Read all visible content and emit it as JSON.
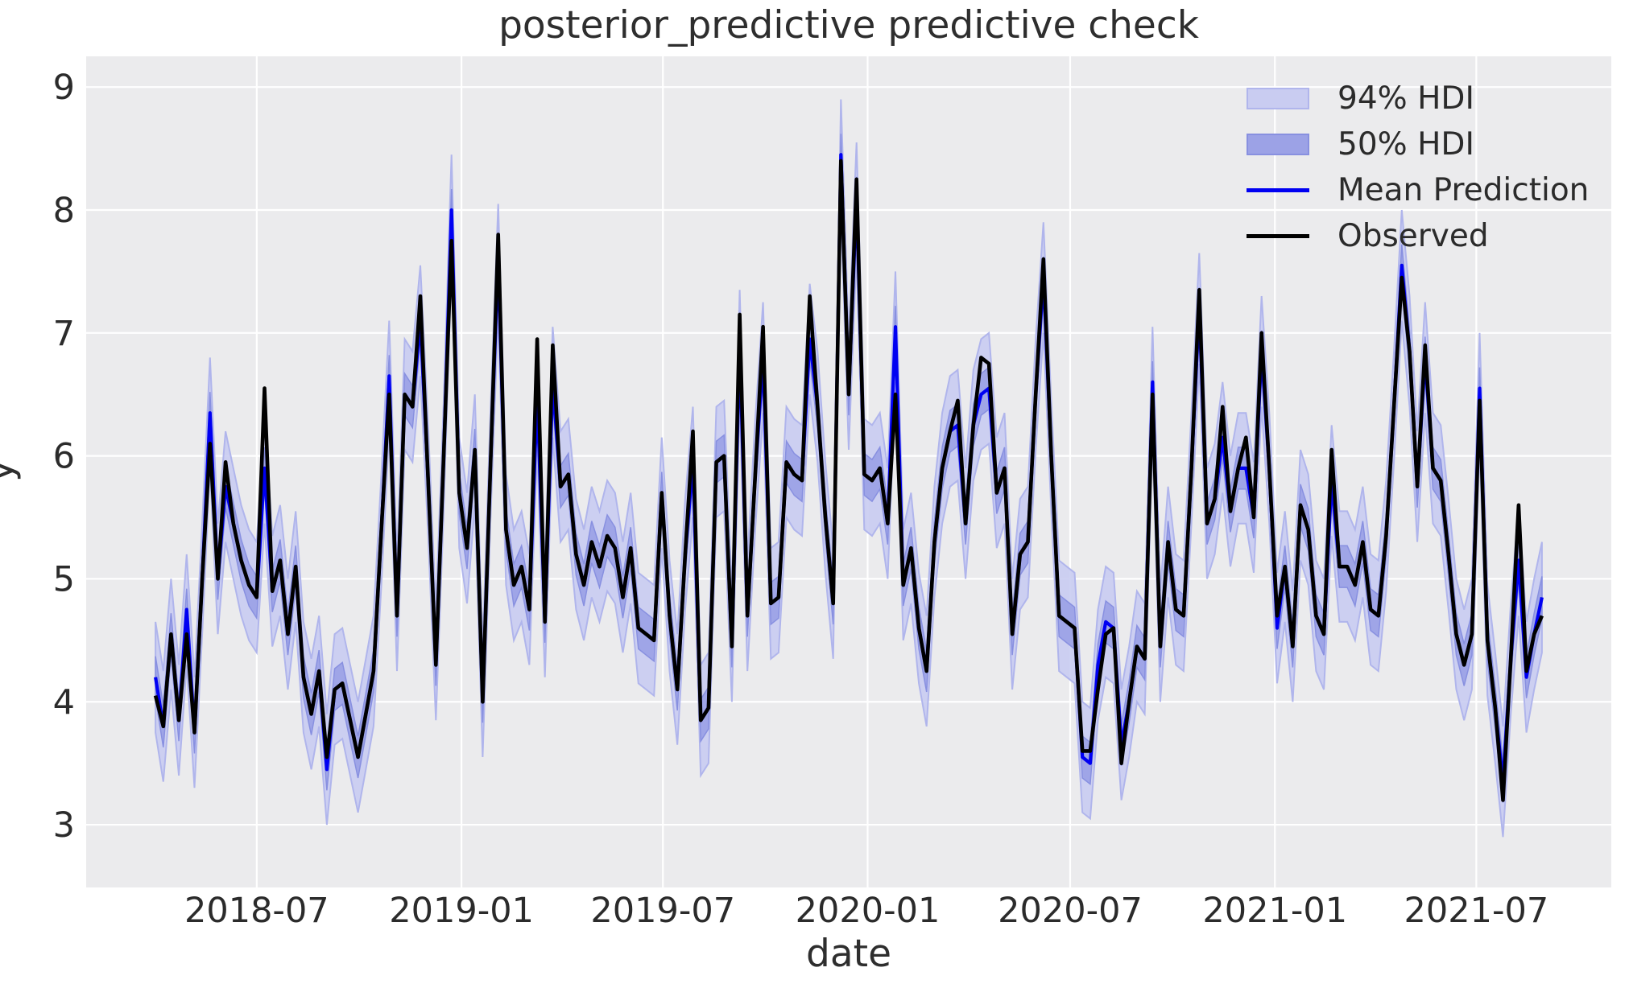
{
  "chart_data": {
    "type": "line",
    "title": "posterior_predictive predictive check",
    "xlabel": "date",
    "ylabel": "y",
    "grid": true,
    "colors": {
      "figure_bg": "#ffffff",
      "panel_bg": "#ebebed",
      "grid_color": "#ffffff",
      "tick_text": "#2b2b2b",
      "mean_line": "#0000f2",
      "observed_line": "#000000",
      "hdi94_fill": "#c9ccf1",
      "hdi94_edge": "#b0b5ec",
      "hdi50_fill": "#9ca2e6",
      "hdi50_edge": "#8890e0"
    },
    "ylim": [
      2.49,
      9.25
    ],
    "y_ticks": [
      9,
      8,
      7,
      6,
      5,
      4,
      3
    ],
    "x_start_date": "2018-04-01",
    "x_step_days": 7,
    "x_ticks": [
      {
        "label": "2018-07",
        "date": "2018-07-01"
      },
      {
        "label": "2019-01",
        "date": "2019-01-01"
      },
      {
        "label": "2019-07",
        "date": "2019-07-01"
      },
      {
        "label": "2020-01",
        "date": "2020-01-01"
      },
      {
        "label": "2020-07",
        "date": "2020-07-01"
      },
      {
        "label": "2021-01",
        "date": "2021-01-01"
      },
      {
        "label": "2021-07",
        "date": "2021-07-01"
      }
    ],
    "legend": {
      "position": "upper right",
      "entries": [
        "94% HDI",
        "50% HDI",
        "Mean Prediction",
        "Observed"
      ]
    },
    "bands": [
      {
        "name": "94% HDI",
        "around": "Mean Prediction",
        "half_width": 0.45
      },
      {
        "name": "50% HDI",
        "around": "Mean Prediction",
        "half_width": 0.17
      }
    ],
    "series": [
      {
        "name": "Mean Prediction",
        "values": [
          4.2,
          3.8,
          4.55,
          3.85,
          4.75,
          3.75,
          5.0,
          6.35,
          5.0,
          5.75,
          5.45,
          5.15,
          4.95,
          4.85,
          5.9,
          4.9,
          5.15,
          4.55,
          5.1,
          4.2,
          3.9,
          4.25,
          3.45,
          4.1,
          4.15,
          3.85,
          3.55,
          3.9,
          4.25,
          5.4,
          6.65,
          4.7,
          6.5,
          6.4,
          7.1,
          5.8,
          4.3,
          6.0,
          8.0,
          5.7,
          5.25,
          6.05,
          4.0,
          5.9,
          7.6,
          5.4,
          4.95,
          5.1,
          4.75,
          6.5,
          4.65,
          6.6,
          5.75,
          5.85,
          5.2,
          4.95,
          5.3,
          5.1,
          5.35,
          5.25,
          4.85,
          5.25,
          4.6,
          4.55,
          4.5,
          5.7,
          4.7,
          4.1,
          5.2,
          5.95,
          3.85,
          3.95,
          5.95,
          6.0,
          4.45,
          6.9,
          4.7,
          5.85,
          6.8,
          4.8,
          4.85,
          5.95,
          5.85,
          5.8,
          6.95,
          6.4,
          5.5,
          4.8,
          8.45,
          6.5,
          8.1,
          5.85,
          5.8,
          5.9,
          5.45,
          7.05,
          4.95,
          5.25,
          4.6,
          4.25,
          5.3,
          5.9,
          6.2,
          6.25,
          5.45,
          6.25,
          6.5,
          6.55,
          5.7,
          5.9,
          4.55,
          5.2,
          5.3,
          6.5,
          7.45,
          6.0,
          4.7,
          4.65,
          4.6,
          3.55,
          3.5,
          4.3,
          4.65,
          4.6,
          3.65,
          4.0,
          4.45,
          4.35,
          6.6,
          4.45,
          5.3,
          4.75,
          4.7,
          5.9,
          7.2,
          5.45,
          5.65,
          6.15,
          5.55,
          5.9,
          5.9,
          5.5,
          6.85,
          5.9,
          4.6,
          5.1,
          4.45,
          5.6,
          5.4,
          4.7,
          4.55,
          5.8,
          5.1,
          5.1,
          4.95,
          5.3,
          4.75,
          4.7,
          5.35,
          6.4,
          7.55,
          6.85,
          5.75,
          6.8,
          5.9,
          5.8,
          5.2,
          4.55,
          4.3,
          4.55,
          6.55,
          4.5,
          3.95,
          3.35,
          4.35,
          5.15,
          4.2,
          4.55,
          4.85
        ]
      },
      {
        "name": "Observed",
        "values": [
          4.05,
          3.8,
          4.55,
          3.85,
          4.55,
          3.75,
          5.0,
          6.1,
          5.0,
          5.95,
          5.45,
          5.15,
          4.95,
          4.85,
          6.55,
          4.9,
          5.15,
          4.55,
          5.1,
          4.2,
          3.9,
          4.25,
          3.55,
          4.1,
          4.15,
          3.85,
          3.55,
          3.9,
          4.25,
          5.4,
          6.5,
          4.7,
          6.5,
          6.4,
          7.3,
          5.8,
          4.3,
          6.0,
          7.75,
          5.7,
          5.25,
          6.05,
          4.0,
          5.9,
          7.8,
          5.4,
          4.95,
          5.1,
          4.75,
          6.95,
          4.65,
          6.9,
          5.75,
          5.85,
          5.2,
          4.95,
          5.3,
          5.1,
          5.35,
          5.25,
          4.85,
          5.25,
          4.6,
          4.55,
          4.5,
          5.7,
          4.7,
          4.1,
          5.2,
          6.2,
          3.85,
          3.95,
          5.95,
          6.0,
          4.45,
          7.15,
          4.7,
          5.85,
          7.05,
          4.8,
          4.85,
          5.95,
          5.85,
          5.8,
          7.3,
          6.4,
          5.5,
          4.8,
          8.4,
          6.5,
          8.25,
          5.85,
          5.8,
          5.9,
          5.45,
          6.5,
          4.95,
          5.25,
          4.6,
          4.25,
          5.3,
          5.9,
          6.2,
          6.45,
          5.45,
          6.25,
          6.8,
          6.75,
          5.7,
          5.9,
          4.55,
          5.2,
          5.3,
          6.5,
          7.6,
          6.0,
          4.7,
          4.65,
          4.6,
          3.6,
          3.6,
          4.1,
          4.55,
          4.6,
          3.5,
          4.0,
          4.45,
          4.35,
          6.5,
          4.45,
          5.3,
          4.75,
          4.7,
          5.9,
          7.35,
          5.45,
          5.65,
          6.4,
          5.55,
          5.9,
          6.15,
          5.5,
          7.0,
          5.9,
          4.7,
          5.1,
          4.45,
          5.6,
          5.4,
          4.7,
          4.55,
          6.05,
          5.1,
          5.1,
          4.95,
          5.3,
          4.75,
          4.7,
          5.35,
          6.4,
          7.45,
          6.85,
          5.75,
          6.9,
          5.9,
          5.8,
          5.2,
          4.55,
          4.3,
          4.55,
          6.45,
          4.5,
          3.95,
          3.2,
          4.35,
          5.6,
          4.25,
          4.55,
          4.7
        ]
      }
    ]
  }
}
